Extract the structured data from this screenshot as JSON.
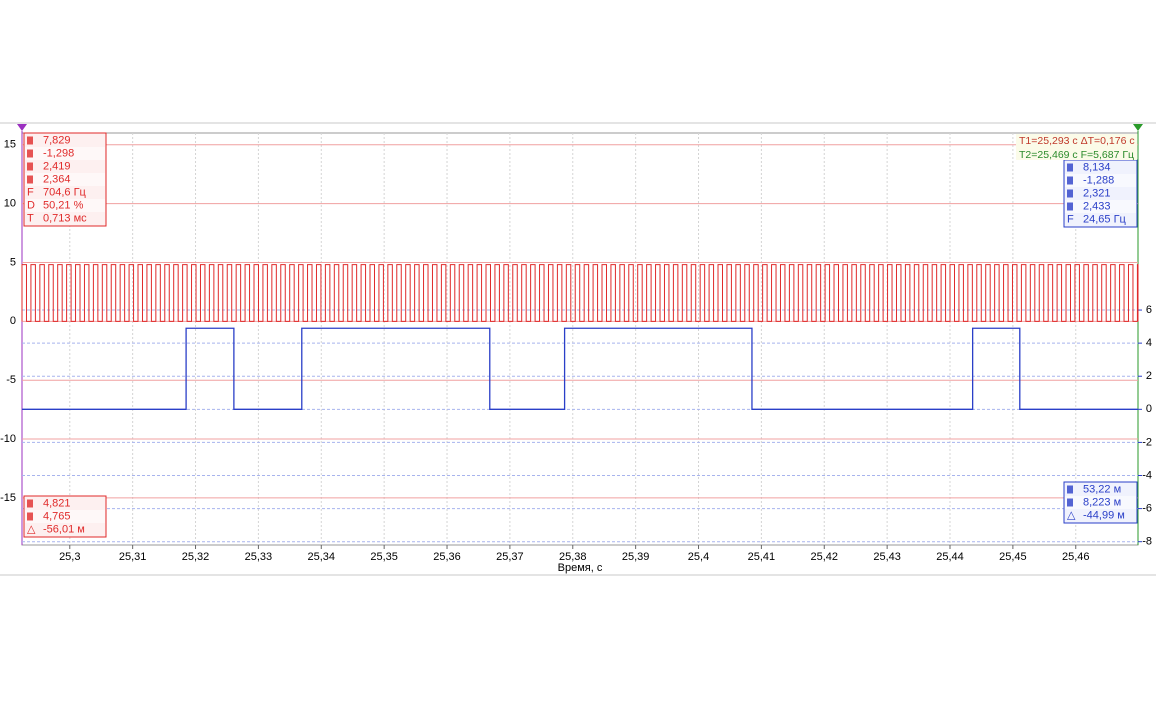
{
  "chart_data": {
    "type": "line",
    "x_label": "Время, с",
    "xlim": [
      25.2924,
      25.4699
    ],
    "xticks": [
      {
        "value": 25.3,
        "label": "25,3"
      },
      {
        "value": 25.31,
        "label": "25,31"
      },
      {
        "value": 25.32,
        "label": "25,32"
      },
      {
        "value": 25.33,
        "label": "25,33"
      },
      {
        "value": 25.34,
        "label": "25,34"
      },
      {
        "value": 25.35,
        "label": "25,35"
      },
      {
        "value": 25.36,
        "label": "25,36"
      },
      {
        "value": 25.37,
        "label": "25,37"
      },
      {
        "value": 25.38,
        "label": "25,38"
      },
      {
        "value": 25.39,
        "label": "25,39"
      },
      {
        "value": 25.4,
        "label": "25,4"
      },
      {
        "value": 25.41,
        "label": "25,41"
      },
      {
        "value": 25.42,
        "label": "25,42"
      },
      {
        "value": 25.43,
        "label": "25,43"
      },
      {
        "value": 25.44,
        "label": "25,44"
      },
      {
        "value": 25.45,
        "label": "25,45"
      },
      {
        "value": 25.46,
        "label": "25,46"
      }
    ],
    "ylim": [
      -19.0,
      16.0
    ],
    "yticks": [
      15,
      10,
      5,
      0,
      -5,
      -10,
      -15
    ],
    "y2lim": [
      -8.2,
      16.7
    ],
    "y2ticks": [
      6,
      4,
      2,
      0,
      -2,
      -4,
      -6,
      -8
    ],
    "grid": true,
    "series": [
      {
        "axis": "y2",
        "color": "#2a3fc8",
        "x": [
          25.2924,
          25.3185,
          25.3185,
          25.3261,
          25.3261,
          25.3369,
          25.3369,
          25.3668,
          25.3668,
          25.3787,
          25.3787,
          25.4085,
          25.4085,
          25.4436,
          25.4436,
          25.4511,
          25.4511,
          25.4699
        ],
        "values": [
          0,
          0,
          4.9,
          4.9,
          0,
          0,
          4.9,
          4.9,
          0,
          0,
          4.9,
          4.9,
          0,
          0,
          4.9,
          4.9,
          0,
          0
        ]
      }
    ]
  },
  "red_color": "#e02a2a",
  "red_stats": [
    {
      "value": {
        "value": 7.829,
        "label": "7,829"
      }
    },
    {
      "value": {
        "value": -1.298,
        "label": "-1,298"
      }
    },
    {
      "value": {
        "value": 2.419,
        "label": "2,419"
      }
    },
    {
      "value": {
        "value": 2.364,
        "label": "2,364"
      }
    },
    {
      "symbol": "F",
      "value": {
        "value": 704.6,
        "label": "704,6 Гц"
      }
    },
    {
      "symbol": "D",
      "value": {
        "value": 50.21,
        "label": "50,21 %"
      }
    },
    {
      "symbol": "T",
      "value": {
        "value": 0.713,
        "label": "0,713 мс"
      }
    }
  ],
  "blue_stats": [
    {
      "value": {
        "value": 8.134,
        "label": "8,134"
      }
    },
    {
      "value": {
        "value": -1.288,
        "label": "-1,288"
      }
    },
    {
      "value": {
        "value": 2.321,
        "label": "2,321"
      }
    },
    {
      "value": {
        "value": 2.433,
        "label": "2,433"
      }
    },
    {
      "symbol": "F",
      "value": {
        "value": 24.65,
        "label": "24,65 Гц"
      }
    }
  ],
  "cursor_info": [
    "T1=25,293 с ΔT=0,176 с",
    "T2=25,469 с F=5,687 Гц"
  ],
  "red_cursors": [
    {
      "value": {
        "value": 4.821,
        "label": "4,821"
      }
    },
    {
      "value": {
        "value": 4.765,
        "label": "4,765"
      }
    },
    {
      "symbol": "△",
      "value": {
        "value": -56.01,
        "label": "-56,01 м"
      }
    }
  ],
  "blue_cursors": [
    {
      "value": {
        "value": 53.22,
        "label": "53,22 м"
      }
    },
    {
      "value": {
        "value": 8.223,
        "label": "8,223 м"
      }
    },
    {
      "symbol": "△",
      "value": {
        "value": -44.99,
        "label": "-44,99 м"
      }
    }
  ]
}
